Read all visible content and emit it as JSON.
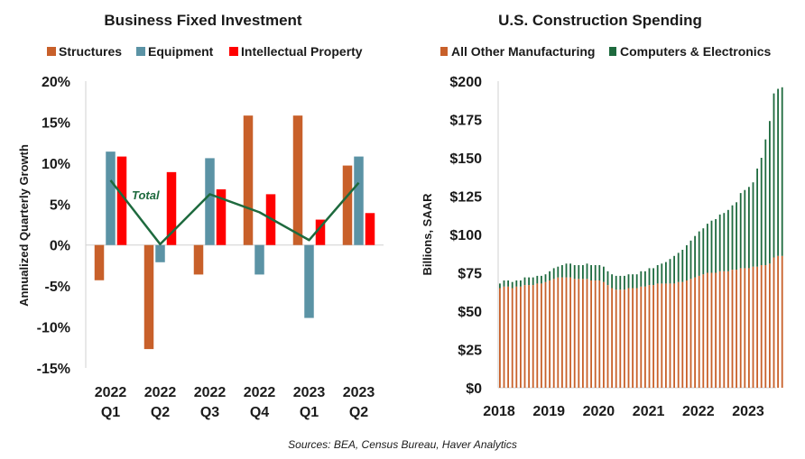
{
  "chart_data": [
    {
      "type": "bar",
      "title": "Business Fixed Investment",
      "xlabel": "",
      "ylabel": "Annualized Quarterly Growth",
      "ylim": [
        -15,
        20
      ],
      "yticks": [
        -15,
        -10,
        -5,
        0,
        5,
        10,
        15,
        20
      ],
      "ytick_labels": [
        "-15%",
        "-10%",
        "-5%",
        "0%",
        "5%",
        "10%",
        "15%",
        "20%"
      ],
      "categories": [
        {
          "year": "2022",
          "quarter": "Q1"
        },
        {
          "year": "2022",
          "quarter": "Q2"
        },
        {
          "year": "2022",
          "quarter": "Q3"
        },
        {
          "year": "2022",
          "quarter": "Q4"
        },
        {
          "year": "2023",
          "quarter": "Q1"
        },
        {
          "year": "2023",
          "quarter": "Q2"
        }
      ],
      "series": [
        {
          "name": "Structures",
          "color": "#c8602a",
          "values": [
            -4.3,
            -12.7,
            -3.6,
            15.8,
            15.8,
            9.7
          ]
        },
        {
          "name": "Equipment",
          "color": "#5b93a5",
          "values": [
            11.4,
            -2.1,
            10.6,
            -3.6,
            -8.9,
            10.8
          ]
        },
        {
          "name": "Intellectual Property",
          "color": "#ff0000",
          "values": [
            10.8,
            8.9,
            6.8,
            6.2,
            3.1,
            3.9
          ]
        }
      ],
      "line": {
        "name": "Total",
        "label": "Total",
        "color": "#1e6a3e",
        "values": [
          7.9,
          0.1,
          6.2,
          4.0,
          0.6,
          7.6
        ]
      }
    },
    {
      "type": "bar",
      "stacked": true,
      "title": "U.S. Construction  Spending",
      "xlabel": "",
      "ylabel": "Billions, SAAR",
      "ylim": [
        0,
        200
      ],
      "yticks": [
        0,
        25,
        50,
        75,
        100,
        125,
        150,
        175,
        200
      ],
      "ytick_labels": [
        "$0",
        "$25",
        "$50",
        "$75",
        "$100",
        "$125",
        "$150",
        "$175",
        "$200"
      ],
      "xticks": [
        "2018",
        "2019",
        "2020",
        "2021",
        "2022",
        "2023"
      ],
      "x_start": "2018-01",
      "series": [
        {
          "name": "All Other Manufacturing",
          "color": "#c8602a",
          "values": [
            65,
            66,
            66,
            65,
            66,
            66,
            67,
            67,
            67,
            68,
            68,
            69,
            70,
            71,
            72,
            72,
            72,
            72,
            71,
            71,
            71,
            71,
            70,
            70,
            70,
            69,
            67,
            65,
            64,
            64,
            64,
            65,
            65,
            65,
            66,
            66,
            67,
            67,
            68,
            68,
            68,
            68,
            68,
            69,
            69,
            70,
            71,
            72,
            73,
            74,
            75,
            75,
            75,
            76,
            76,
            76,
            77,
            77,
            78,
            78,
            78,
            79,
            79,
            80,
            80,
            81,
            85,
            86,
            86
          ]
        },
        {
          "name": "Computers & Electronics",
          "color": "#1e6a3e",
          "values": [
            3,
            4,
            4,
            4,
            4,
            4,
            5,
            5,
            5,
            5,
            5,
            5,
            6,
            7,
            7,
            8,
            9,
            9,
            9,
            9,
            9,
            10,
            10,
            10,
            10,
            10,
            9,
            9,
            9,
            9,
            9,
            9,
            9,
            9,
            10,
            10,
            11,
            11,
            12,
            13,
            14,
            16,
            18,
            19,
            21,
            23,
            25,
            27,
            29,
            30,
            32,
            34,
            35,
            37,
            38,
            40,
            42,
            44,
            49,
            51,
            53,
            55,
            64,
            70,
            82,
            93,
            107,
            109,
            110
          ]
        }
      ]
    }
  ],
  "source_note": "Sources: BEA, Census Bureau, Haver Analytics"
}
